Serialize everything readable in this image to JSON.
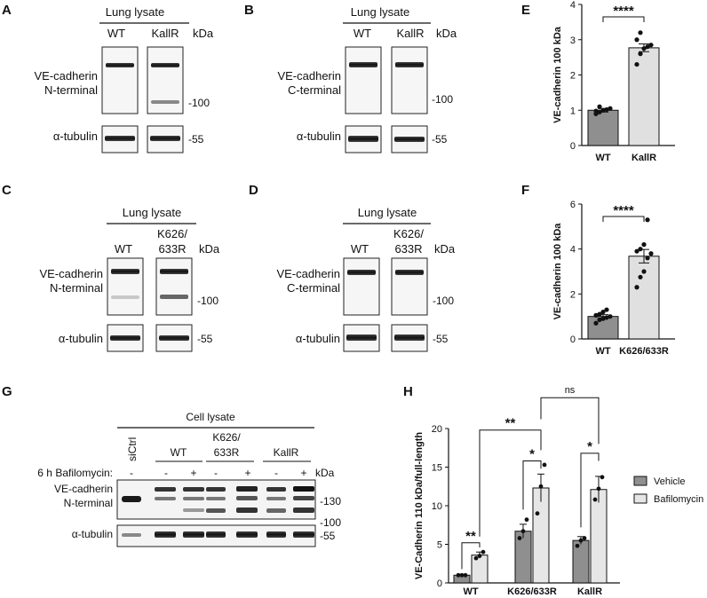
{
  "panels": {
    "A": {
      "letter": "A",
      "header": "Lung lysate",
      "lanes": [
        "WT",
        "KallR"
      ],
      "kda": "kDa",
      "row1_label": [
        "VE-cadherin",
        "N-terminal"
      ],
      "row2_label": "α-tubulin",
      "markers": [
        "-100",
        "-55"
      ]
    },
    "B": {
      "letter": "B",
      "header": "Lung lysate",
      "lanes": [
        "WT",
        "KallR"
      ],
      "kda": "kDa",
      "row1_label": [
        "VE-cadherin",
        "C-terminal"
      ],
      "row2_label": "α-tubulin",
      "markers": [
        "-100",
        "-55"
      ]
    },
    "C": {
      "letter": "C",
      "header": "Lung lysate",
      "lanes": [
        "WT",
        "K626/",
        "633R"
      ],
      "kda": "kDa",
      "row1_label": [
        "VE-cadherin",
        "N-terminal"
      ],
      "row2_label": "α-tubulin",
      "markers": [
        "-100",
        "-55"
      ]
    },
    "D": {
      "letter": "D",
      "header": "Lung lysate",
      "lanes": [
        "WT",
        "K626/",
        "633R"
      ],
      "kda": "kDa",
      "row1_label": [
        "VE-cadherin",
        "C-terminal"
      ],
      "row2_label": "α-tubulin",
      "markers": [
        "-100",
        "-55"
      ]
    },
    "G": {
      "letter": "G",
      "header": "Cell lysate",
      "groups": [
        "siCtrl",
        "WT",
        "K626/",
        "633R",
        "KallR"
      ],
      "treatment_label": "6 h Bafilomycin:",
      "treatment_marks": [
        "-",
        "-",
        "+",
        "-",
        "+",
        "-",
        "+"
      ],
      "kda": "kDa",
      "row1_label": [
        "VE-cadherin",
        "N-terminal"
      ],
      "row2_label": "α-tubulin",
      "markers": [
        "-130",
        "-100",
        "-55"
      ]
    }
  },
  "chart_data": [
    {
      "panel": "E",
      "type": "bar",
      "categories": [
        "WT",
        "KallR"
      ],
      "values": [
        1.0,
        2.77
      ],
      "sem": [
        0.05,
        0.11
      ],
      "points": [
        [
          0.9,
          0.95,
          1.0,
          1.02,
          1.05,
          0.98,
          1.1
        ],
        [
          2.3,
          2.6,
          2.75,
          2.8,
          2.85,
          3.0,
          3.2
        ]
      ],
      "ylabel": "VE-cadherin 100 kDa",
      "ylim": [
        0,
        4
      ],
      "yticks": [
        0,
        1,
        2,
        3,
        4
      ],
      "significance": "****"
    },
    {
      "panel": "F",
      "type": "bar",
      "categories": [
        "WT",
        "K626/633R"
      ],
      "values": [
        1.0,
        3.68
      ],
      "sem": [
        0.08,
        0.3
      ],
      "points": [
        [
          0.7,
          0.85,
          0.9,
          0.95,
          1.0,
          1.05,
          1.1,
          1.2,
          1.3
        ],
        [
          2.3,
          2.75,
          3.0,
          3.6,
          3.8,
          3.9,
          4.0,
          4.2,
          5.3
        ]
      ],
      "ylabel": "VE-cadherin 100 kDa",
      "ylim": [
        0,
        6
      ],
      "yticks": [
        0,
        2,
        4,
        6
      ],
      "significance": "****"
    },
    {
      "panel": "H",
      "type": "bar",
      "categories": [
        "WT",
        "K626/633R",
        "KallR"
      ],
      "series": [
        {
          "name": "Vehicle",
          "values": [
            1.0,
            6.7,
            5.5
          ],
          "sem": [
            0.1,
            0.9,
            0.5
          ],
          "points": [
            [
              1.0,
              1.0,
              1.0
            ],
            [
              5.8,
              6.7,
              8.2
            ],
            [
              4.8,
              5.5,
              5.8
            ]
          ],
          "color": "#8f8f8f"
        },
        {
          "name": "Bafilomycin",
          "values": [
            3.6,
            12.3,
            12.1
          ],
          "sem": [
            0.4,
            1.8,
            1.7
          ],
          "points": [
            [
              3.2,
              3.5,
              4.0
            ],
            [
              9.0,
              12.5,
              15.3
            ],
            [
              10.8,
              12.2,
              13.7
            ]
          ],
          "color": "#e6e6e6"
        }
      ],
      "ylabel": "VE-Cadherin 110 kDa/full-length",
      "ylim": [
        0,
        20
      ],
      "yticks": [
        0,
        5,
        10,
        15,
        20
      ],
      "significance": [
        {
          "label": "**",
          "between": "WT Vehicle vs WT Bafilomycin"
        },
        {
          "label": "*",
          "between": "K626/633R Vehicle vs Bafilomycin"
        },
        {
          "label": "*",
          "between": "KallR Vehicle vs Bafilomycin"
        },
        {
          "label": "**",
          "between": "WT Bafilomycin vs K626/633R Bafilomycin"
        },
        {
          "label": "ns",
          "between": "K626/633R Bafilomycin vs KallR Bafilomycin"
        }
      ]
    }
  ],
  "panel_letters": {
    "E": "E",
    "F": "F",
    "H": "H"
  }
}
